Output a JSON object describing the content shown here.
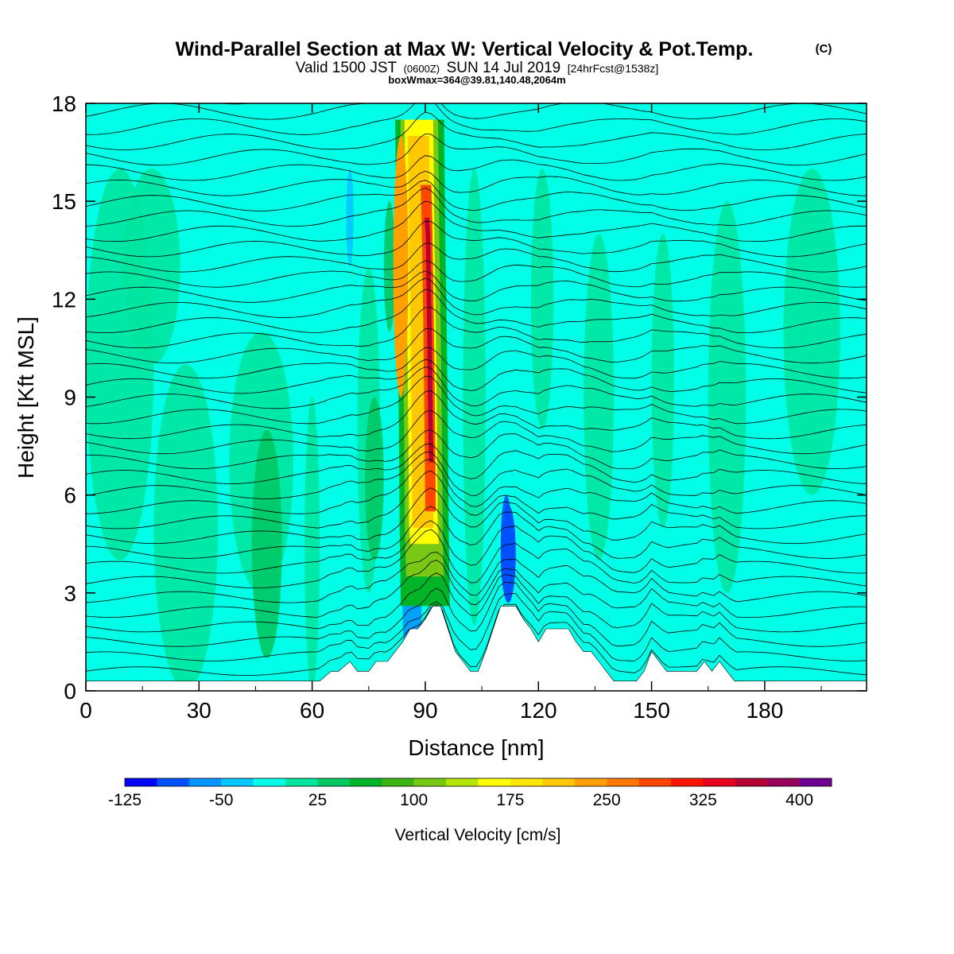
{
  "header": {
    "title": "Wind-Parallel Section at Max W: Vertical Velocity & Pot.Temp.",
    "title_mark": "(C)",
    "valid_prefix": "Valid 1500 JST",
    "valid_zulu": "(0600Z)",
    "valid_date": "SUN 14 Jul 2019",
    "forecast": "[24hrFcst@1538z]",
    "box_wmax": "boxWmax=364@39.81,140.48,2064m"
  },
  "chart_data": {
    "type": "heatmap",
    "xlabel": "Distance [nm]",
    "ylabel": "Height [Kft MSL]",
    "xlim": [
      0,
      207
    ],
    "ylim": [
      0,
      18
    ],
    "x_ticks": [
      0,
      30,
      60,
      90,
      120,
      150,
      180
    ],
    "y_ticks": [
      0,
      3,
      6,
      9,
      12,
      15,
      18
    ],
    "colorbar": {
      "label": "Vertical Velocity [cm/s]",
      "min": -125,
      "step": 25,
      "tick_labels": [
        -125,
        -50,
        25,
        100,
        175,
        250,
        325,
        400
      ],
      "colors": [
        "#0000ff",
        "#0050ff",
        "#0096ff",
        "#00c8ff",
        "#00ffe6",
        "#00e6a0",
        "#00c864",
        "#00b428",
        "#3cb414",
        "#78c814",
        "#b4e600",
        "#ffff00",
        "#ffe600",
        "#ffc800",
        "#ffa000",
        "#ff7800",
        "#ff4600",
        "#ff1400",
        "#e6001e",
        "#b40032",
        "#96005a",
        "#6e0096"
      ]
    },
    "updraft_core": {
      "peak_value": 364,
      "peak_height_kft": 6.8,
      "center_x_nm": [
        91.5,
        91.2,
        91.0,
        90.7,
        90.3,
        90.0
      ],
      "heights_kft": [
        2.6,
        5.0,
        8.0,
        11.0,
        14.0,
        17.5
      ]
    },
    "terrain": {
      "x_nm": [
        0,
        5,
        10,
        15,
        20,
        25,
        30,
        35,
        40,
        45,
        50,
        55,
        60,
        62,
        65,
        67,
        70,
        72,
        75,
        77,
        80,
        82,
        84,
        86,
        88,
        90,
        92,
        94,
        96,
        98,
        100,
        102,
        104,
        106,
        108,
        110,
        112,
        114,
        116,
        118,
        120,
        122,
        124,
        126,
        128,
        130,
        132,
        134,
        136,
        138,
        140,
        142,
        144,
        146,
        148,
        150,
        152,
        154,
        156,
        158,
        160,
        162,
        164,
        166,
        168,
        170,
        172,
        174,
        176,
        180,
        185,
        190,
        195,
        200,
        207
      ],
      "height_kft": [
        0.3,
        0.3,
        0.3,
        0.3,
        0.3,
        0.3,
        0.3,
        0.3,
        0.3,
        0.3,
        0.3,
        0.3,
        0.3,
        0.3,
        0.6,
        0.6,
        0.9,
        0.6,
        0.6,
        0.9,
        0.9,
        1.2,
        1.5,
        1.9,
        1.9,
        2.2,
        2.6,
        2.6,
        1.9,
        1.2,
        0.9,
        0.6,
        0.6,
        1.2,
        1.9,
        2.6,
        2.6,
        2.6,
        2.2,
        1.9,
        1.5,
        1.9,
        1.9,
        1.9,
        1.9,
        1.5,
        1.2,
        1.2,
        0.9,
        0.6,
        0.3,
        0.3,
        0.3,
        0.3,
        0.6,
        1.2,
        0.9,
        0.6,
        0.6,
        0.6,
        0.6,
        0.6,
        0.9,
        0.6,
        0.9,
        0.6,
        0.3,
        0.3,
        0.3,
        0.3,
        0.3,
        0.3,
        0.3,
        0.3,
        0.3
      ]
    },
    "isentrope_count": 40
  }
}
